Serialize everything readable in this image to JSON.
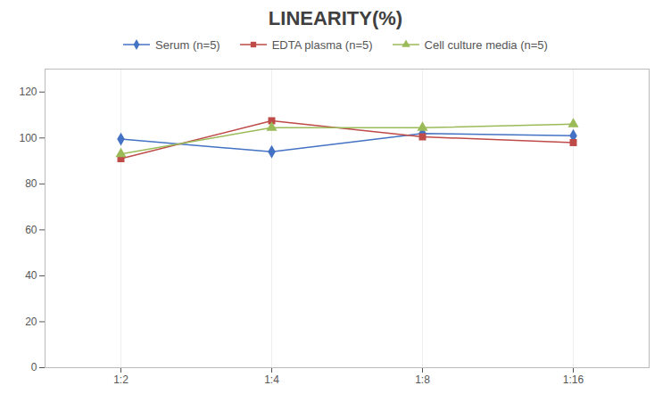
{
  "chart_data": {
    "type": "line",
    "title": "LINEARITY(%)",
    "categories": [
      "1:2",
      "1:4",
      "1:8",
      "1:16"
    ],
    "series": [
      {
        "name": "Serum (n=5)",
        "color": "#4472C4",
        "marker": "diamond",
        "values": [
          99.5,
          94.0,
          102.0,
          101.0
        ]
      },
      {
        "name": "EDTA plasma (n=5)",
        "color": "#BE4B48",
        "marker": "square",
        "values": [
          91.0,
          107.5,
          100.5,
          98.0
        ]
      },
      {
        "name": "Cell culture media (n=5)",
        "color": "#9BBB59",
        "marker": "triangle",
        "values": [
          93.0,
          104.5,
          104.5,
          106.0
        ]
      }
    ],
    "ylim": [
      0,
      130
    ],
    "yticks": [
      0,
      20,
      40,
      60,
      80,
      100,
      120
    ],
    "grid": true,
    "legend": "top"
  }
}
